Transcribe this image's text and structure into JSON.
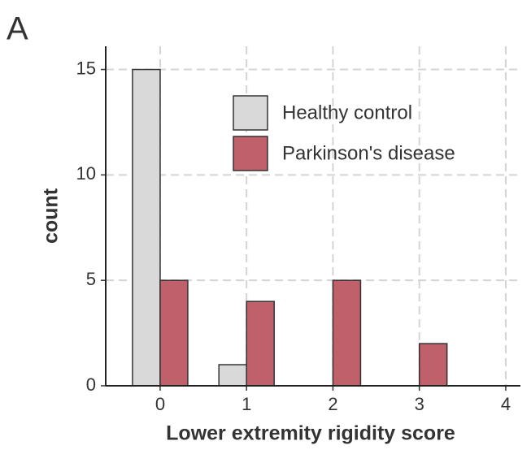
{
  "chart_data": {
    "type": "bar",
    "panel_label": "A",
    "x": [
      0,
      1,
      2,
      3,
      4
    ],
    "series": [
      {
        "name": "Healthy control",
        "color": "#d9d9d9",
        "values": [
          15,
          1,
          0,
          0,
          0
        ]
      },
      {
        "name": "Parkinson's disease",
        "color": "#c0606a",
        "values": [
          5,
          4,
          5,
          2,
          0
        ]
      }
    ],
    "xlabel": "Lower extremity rigidity score",
    "ylabel": "count",
    "xlim": [
      -0.63,
      4.17
    ],
    "xticks": [
      0,
      1,
      2,
      3,
      4
    ],
    "ylim": [
      0,
      16.1
    ],
    "yticks": [
      0,
      5,
      10,
      15
    ],
    "grid": true,
    "legend": "top"
  }
}
